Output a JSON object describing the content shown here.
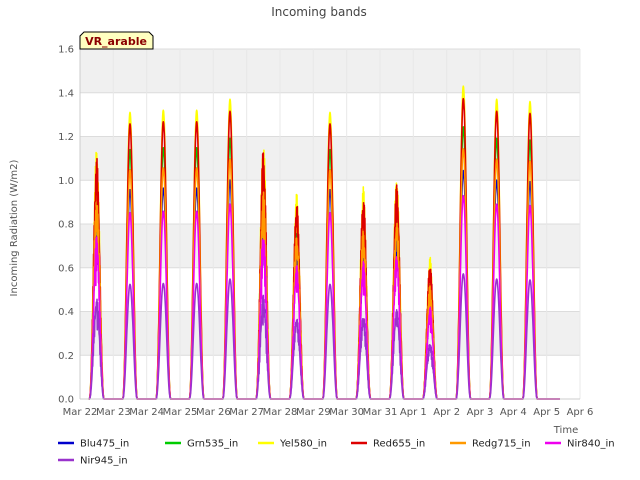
{
  "chart_data": {
    "type": "line",
    "title": "Incoming bands",
    "xlabel": "Time",
    "ylabel": "Incoming Radiation (W/m2)",
    "badge": "VR_arable",
    "ylim": [
      0,
      1.6
    ],
    "yticks": [
      "0.0",
      "0.2",
      "0.4",
      "0.6",
      "0.8",
      "1.0",
      "1.2",
      "1.4",
      "1.6"
    ],
    "xticks": [
      "Mar 22",
      "Mar 23",
      "Mar 24",
      "Mar 25",
      "Mar 26",
      "Mar 27",
      "Mar 28",
      "Mar 29",
      "Mar 30",
      "Mar 31",
      "Apr 1",
      "Apr 2",
      "Apr 3",
      "Apr 4",
      "Apr 5",
      "Apr 6"
    ],
    "grid": true,
    "legend_position": "bottom",
    "day_peaks": [
      {
        "day": "Mar 22",
        "peak": 1.15,
        "shape": [
          0.55,
          0.4,
          0.2
        ]
      },
      {
        "day": "Mar 23",
        "peak": 1.31,
        "shape": []
      },
      {
        "day": "Mar 24",
        "peak": 1.32,
        "shape": []
      },
      {
        "day": "Mar 25",
        "peak": 1.32,
        "shape": []
      },
      {
        "day": "Mar 26",
        "peak": 1.37,
        "shape": []
      },
      {
        "day": "Mar 27",
        "peak": 1.19,
        "shape": [
          0.25
        ]
      },
      {
        "day": "Mar 28",
        "peak": 0.94,
        "shape": [
          0.5,
          0.45
        ]
      },
      {
        "day": "Mar 29",
        "peak": 1.31,
        "shape": []
      },
      {
        "day": "Mar 30",
        "peak": 0.97,
        "shape": [
          0.35
        ]
      },
      {
        "day": "Mar 31",
        "peak": 1.02,
        "shape": [
          0.5
        ]
      },
      {
        "day": "Apr 1",
        "peak": 0.65,
        "shape": [
          0.45,
          0.3
        ]
      },
      {
        "day": "Apr 2",
        "peak": 1.43,
        "shape": []
      },
      {
        "day": "Apr 3",
        "peak": 1.37,
        "shape": []
      },
      {
        "day": "Apr 4",
        "peak": 1.36,
        "shape": []
      }
    ],
    "series": [
      {
        "name": "Blu475_in",
        "color": "#0000cc",
        "scale": 0.73
      },
      {
        "name": "Grn535_in",
        "color": "#00cc00",
        "scale": 0.87
      },
      {
        "name": "Yel580_in",
        "color": "#ffff00",
        "scale": 1.0
      },
      {
        "name": "Red655_in",
        "color": "#dd0000",
        "scale": 0.96
      },
      {
        "name": "Redg715_in",
        "color": "#ff9900",
        "scale": 0.8
      },
      {
        "name": "Nir840_in",
        "color": "#ee00ee",
        "scale": 0.65
      },
      {
        "name": "Nir945_in",
        "color": "#9933cc",
        "scale": 0.4
      }
    ]
  }
}
